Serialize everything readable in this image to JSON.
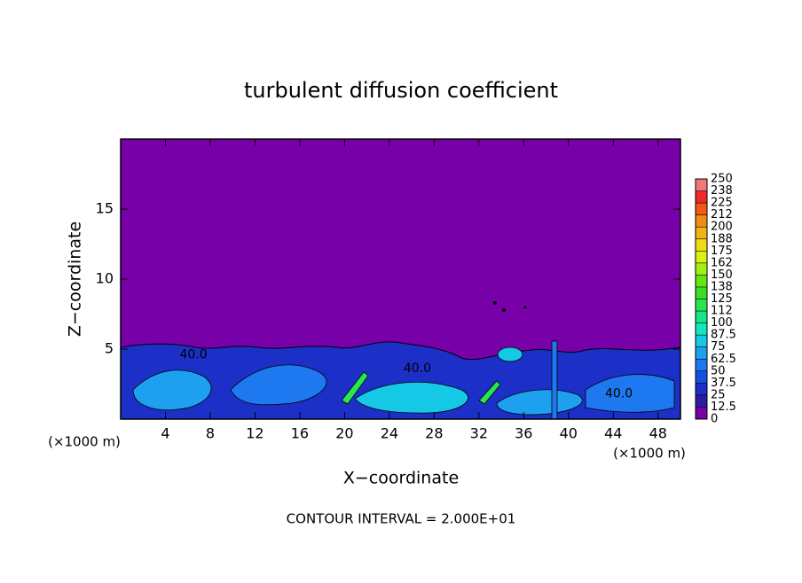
{
  "chart_data": {
    "type": "contour",
    "title": "turbulent diffusion coefficient",
    "xlabel": "X−coordinate",
    "ylabel": "Z−coordinate",
    "x_unit_left": "(×1000 m)",
    "x_unit_right": "(×1000 m)",
    "footnote": "CONTOUR INTERVAL = 2.000E+01",
    "xlim": [
      0,
      50
    ],
    "ylim": [
      0,
      20
    ],
    "xticks": [
      4,
      8,
      12,
      16,
      20,
      24,
      28,
      32,
      36,
      40,
      44,
      48
    ],
    "yticks": [
      5,
      10,
      15
    ],
    "colorbar": {
      "levels": [
        0,
        12.5,
        25,
        37.5,
        50,
        62.5,
        75,
        87.5,
        100,
        112,
        125,
        138,
        150,
        162,
        175,
        188,
        200,
        212,
        225,
        238,
        250
      ],
      "colors": [
        "#7800a8",
        "#2a1ea0",
        "#1c30c8",
        "#1450e6",
        "#1e78f0",
        "#1ea0f0",
        "#14c8e6",
        "#14e6be",
        "#14e68c",
        "#28e650",
        "#3cdc28",
        "#64e614",
        "#a0f014",
        "#dcf014",
        "#f0dc14",
        "#f0b414",
        "#f08c14",
        "#f05a14",
        "#f02828",
        "#f07878"
      ]
    },
    "annotations": [
      {
        "text": "40.0",
        "x": 6.5,
        "y": 4.6
      },
      {
        "text": "40.0",
        "x": 26.5,
        "y": 3.6
      },
      {
        "text": "40.0",
        "x": 44.5,
        "y": 1.8
      }
    ]
  }
}
